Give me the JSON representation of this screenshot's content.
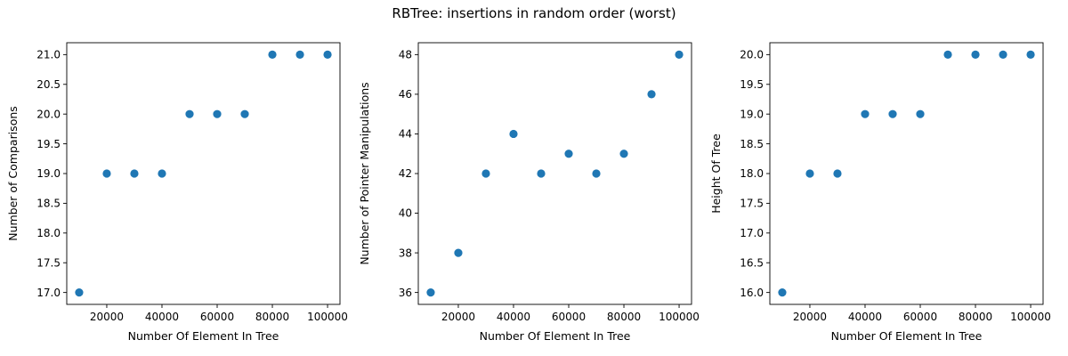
{
  "figure": {
    "title": "RBTree: insertions in random order (worst)"
  },
  "chart_data": [
    {
      "type": "scatter",
      "xlabel": "Number Of Element In Tree",
      "ylabel": "Number of Comparisons",
      "x": [
        10000,
        20000,
        30000,
        40000,
        50000,
        60000,
        70000,
        80000,
        90000,
        100000
      ],
      "y": [
        17,
        19,
        19,
        19,
        20,
        20,
        20,
        21,
        21,
        21
      ],
      "xlim": [
        5500,
        104500
      ],
      "ylim": [
        16.8,
        21.2
      ],
      "xticks": [
        20000,
        40000,
        60000,
        80000,
        100000
      ],
      "xtick_labels": [
        "20000",
        "40000",
        "60000",
        "80000",
        "100000"
      ],
      "yticks": [
        17.0,
        17.5,
        18.0,
        18.5,
        19.0,
        19.5,
        20.0,
        20.5,
        21.0
      ],
      "ytick_labels": [
        "17.0",
        "17.5",
        "18.0",
        "18.5",
        "19.0",
        "19.5",
        "20.0",
        "20.5",
        "21.0"
      ],
      "color": "#1f77b4",
      "grid": false
    },
    {
      "type": "scatter",
      "xlabel": "Number Of Element In Tree",
      "ylabel": "Number of Pointer Manipulations",
      "x": [
        10000,
        20000,
        30000,
        40000,
        50000,
        60000,
        70000,
        80000,
        90000,
        100000
      ],
      "y": [
        36,
        38,
        42,
        44,
        42,
        43,
        42,
        43,
        46,
        48
      ],
      "xlim": [
        5500,
        104500
      ],
      "ylim": [
        35.4,
        48.6
      ],
      "xticks": [
        20000,
        40000,
        60000,
        80000,
        100000
      ],
      "xtick_labels": [
        "20000",
        "40000",
        "60000",
        "80000",
        "100000"
      ],
      "yticks": [
        36,
        38,
        40,
        42,
        44,
        46,
        48
      ],
      "ytick_labels": [
        "36",
        "38",
        "40",
        "42",
        "44",
        "46",
        "48"
      ],
      "color": "#1f77b4",
      "grid": false
    },
    {
      "type": "scatter",
      "xlabel": "Number Of Element In Tree",
      "ylabel": "Height Of Tree",
      "x": [
        10000,
        20000,
        30000,
        40000,
        50000,
        60000,
        70000,
        80000,
        90000,
        100000
      ],
      "y": [
        16,
        18,
        18,
        19,
        19,
        19,
        20,
        20,
        20,
        20
      ],
      "xlim": [
        5500,
        104500
      ],
      "ylim": [
        15.8,
        20.2
      ],
      "xticks": [
        20000,
        40000,
        60000,
        80000,
        100000
      ],
      "xtick_labels": [
        "20000",
        "40000",
        "60000",
        "80000",
        "100000"
      ],
      "yticks": [
        16.0,
        16.5,
        17.0,
        17.5,
        18.0,
        18.5,
        19.0,
        19.5,
        20.0
      ],
      "ytick_labels": [
        "16.0",
        "16.5",
        "17.0",
        "17.5",
        "18.0",
        "18.5",
        "19.0",
        "19.5",
        "20.0"
      ],
      "color": "#1f77b4",
      "grid": false
    }
  ]
}
